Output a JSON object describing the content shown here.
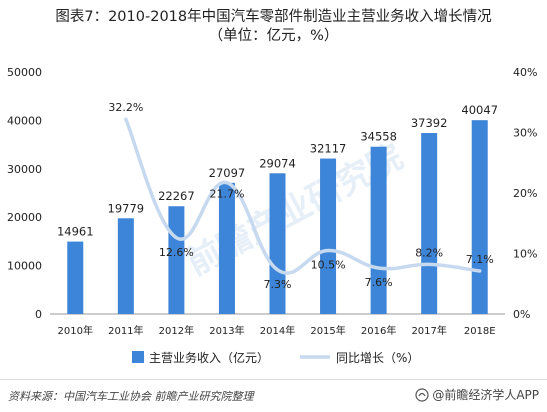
{
  "title_line1": "图表7：2010-2018年中国汽车零部件制造业主营业务收入增长情况",
  "title_line2": "（单位：亿元，%）",
  "source": "资料来源：中国汽车工业协会 前瞻产业研究院整理",
  "brand": "@前瞻经济学人APP",
  "colors": {
    "bar": "#3d85d8",
    "line": "#c7d9ee",
    "axis": "#9a9a9a",
    "text": "#222222"
  },
  "chart_data": {
    "type": "bar",
    "categories": [
      "2010年",
      "2011年",
      "2012年",
      "2013年",
      "2014年",
      "2015年",
      "2016年",
      "2017年",
      "2018E"
    ],
    "series": [
      {
        "name": "主营业务收入（亿元）",
        "type": "bar",
        "axis": "left",
        "values": [
          14961,
          19779,
          22267,
          27097,
          29074,
          32117,
          34558,
          37392,
          40047
        ]
      },
      {
        "name": "同比增长（%）",
        "type": "line",
        "axis": "right",
        "values": [
          null,
          32.2,
          12.6,
          21.7,
          7.3,
          10.5,
          7.6,
          8.2,
          7.1
        ],
        "labels": [
          "",
          "32.2%",
          "12.6%",
          "21.7%",
          "7.3%",
          "10.5%",
          "7.6%",
          "8.2%",
          "7.1%"
        ]
      }
    ],
    "y_left": {
      "min": 0,
      "max": 50000,
      "ticks": [
        "0",
        "10000",
        "20000",
        "30000",
        "40000",
        "50000"
      ]
    },
    "y_right": {
      "min": 0,
      "max": 40,
      "ticks": [
        "0%",
        "10%",
        "20%",
        "30%",
        "40%"
      ]
    },
    "legend_position": "bottom",
    "grid": false
  }
}
